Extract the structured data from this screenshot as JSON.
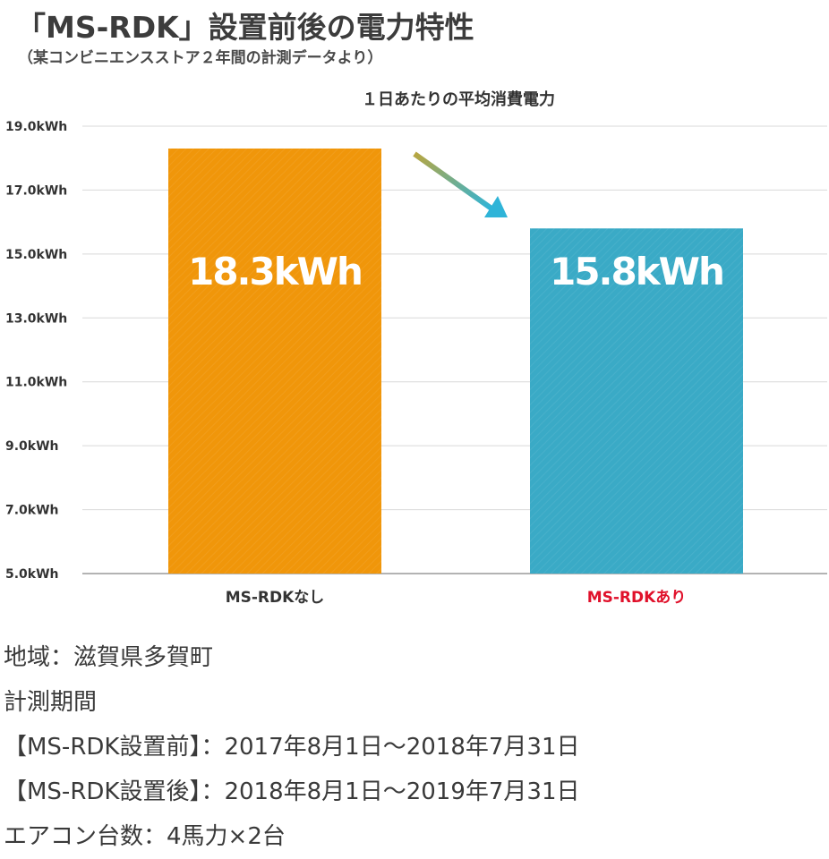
{
  "header": {
    "title": "「MS-RDK」設置前後の電力特性",
    "subtitle": "（某コンビニエンスストア２年間の計測データより）"
  },
  "chart_data": {
    "type": "bar",
    "title": "１日あたりの平均消費電力",
    "categories": [
      "MS-RDKなし",
      "MS-RDKあり"
    ],
    "values": [
      18.3,
      15.8
    ],
    "data_labels": [
      "18.3kWh",
      "15.8kWh"
    ],
    "bar_colors": [
      "#f0960a",
      "#3aaac6"
    ],
    "category_label_colors": [
      "#333333",
      "#e0102a"
    ],
    "ylim": [
      5.0,
      19.0
    ],
    "yticks": [
      5.0,
      7.0,
      9.0,
      11.0,
      13.0,
      15.0,
      17.0,
      19.0
    ],
    "ytick_labels": [
      "5.0kWh",
      "7.0kWh",
      "9.0kWh",
      "11.0kWh",
      "13.0kWh",
      "15.0kWh",
      "17.0kWh",
      "19.0kWh"
    ],
    "grid": true,
    "annotation": "arrow-down-right"
  },
  "notes": {
    "region": "地域：滋賀県多賀町",
    "period_label": "計測期間",
    "before": "【MS-RDK設置前】：2017年8月1日～2018年7月31日",
    "after": "【MS-RDK設置後】：2018年8月1日～2019年7月31日",
    "aircon": "エアコン台数：4馬力×2台"
  }
}
